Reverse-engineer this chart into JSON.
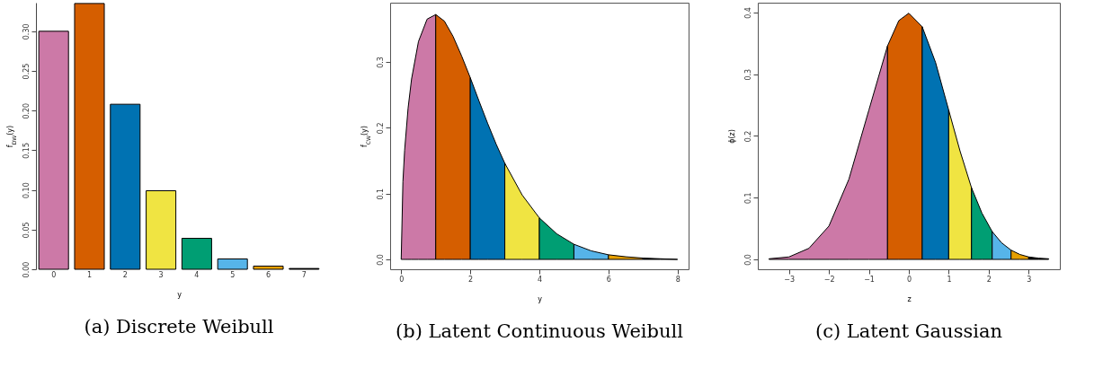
{
  "chart_data": [
    {
      "type": "bar",
      "title": "(a) Discrete Weibull",
      "xlabel": "y",
      "ylabel": "f$_{DW}$(y)",
      "categories": [
        "0",
        "1",
        "2",
        "3",
        "4",
        "5",
        "6",
        "7"
      ],
      "values": [
        0.3,
        0.335,
        0.208,
        0.099,
        0.039,
        0.013,
        0.004,
        0.001
      ],
      "colors": [
        "#cc79a7",
        "#d55e00",
        "#0072b2",
        "#f0e442",
        "#009e73",
        "#56b4e9",
        "#e69f00",
        "#000000"
      ],
      "ylim": [
        0,
        0.336
      ],
      "yticks": [
        {
          "value": 0,
          "label": "0.00"
        },
        {
          "value": 0.05,
          "label": "0.05"
        },
        {
          "value": 0.1,
          "label": "0.10"
        },
        {
          "value": 0.15,
          "label": "0.15"
        },
        {
          "value": 0.2,
          "label": "0.20"
        },
        {
          "value": 0.25,
          "label": "0.25"
        },
        {
          "value": 0.3,
          "label": "0.30"
        }
      ]
    },
    {
      "type": "area",
      "title": "(b) Latent Continuous Weibull",
      "xlabel": "y",
      "ylabel": "f$_{CW}$(y)",
      "xlim": [
        -0.32,
        8.32
      ],
      "xticks": [
        0,
        2,
        4,
        6,
        8
      ],
      "ylim": [
        -0.015,
        0.39
      ],
      "yticks": [
        {
          "value": 0,
          "label": "0.0"
        },
        {
          "value": 0.1,
          "label": "0.1"
        },
        {
          "value": 0.2,
          "label": "0.2"
        },
        {
          "value": 0.3,
          "label": "0.3"
        }
      ],
      "series": [
        {
          "color": "#cc79a7",
          "x": [
            0,
            0.05,
            0.1,
            0.2,
            0.3,
            0.5,
            0.75,
            1
          ],
          "values": [
            0,
            0.118,
            0.166,
            0.23,
            0.274,
            0.331,
            0.365,
            0.372
          ]
        },
        {
          "color": "#d55e00",
          "x": [
            1,
            1.25,
            1.5,
            1.75,
            2
          ],
          "values": [
            0.372,
            0.362,
            0.339,
            0.309,
            0.276
          ]
        },
        {
          "color": "#0072b2",
          "x": [
            2,
            2.25,
            2.5,
            2.75,
            3
          ],
          "values": [
            0.276,
            0.241,
            0.207,
            0.175,
            0.146
          ]
        },
        {
          "color": "#f0e442",
          "x": [
            3,
            3.5,
            4
          ],
          "values": [
            0.146,
            0.098,
            0.063
          ]
        },
        {
          "color": "#009e73",
          "x": [
            4,
            4.5,
            5
          ],
          "values": [
            0.063,
            0.039,
            0.023
          ]
        },
        {
          "color": "#56b4e9",
          "x": [
            5,
            5.5,
            6
          ],
          "values": [
            0.023,
            0.013,
            0.007
          ]
        },
        {
          "color": "#e69f00",
          "x": [
            6,
            6.5,
            7
          ],
          "values": [
            0.007,
            0.004,
            0.002
          ]
        },
        {
          "color": "#000000",
          "x": [
            7,
            7.5,
            8
          ],
          "values": [
            0.002,
            0.001,
            0
          ]
        }
      ]
    },
    {
      "type": "area",
      "title": "(c) Latent Gaussian",
      "xlabel": "z",
      "ylabel": "ϕ(z)",
      "xlim": [
        -3.78,
        3.78
      ],
      "xticks": [
        -3,
        -2,
        -1,
        0,
        1,
        2,
        3
      ],
      "ylim": [
        -0.016,
        0.416
      ],
      "yticks": [
        {
          "value": 0,
          "label": "0.0"
        },
        {
          "value": 0.1,
          "label": "0.1"
        },
        {
          "value": 0.2,
          "label": "0.2"
        },
        {
          "value": 0.3,
          "label": "0.3"
        },
        {
          "value": 0.4,
          "label": "0.4"
        }
      ],
      "series": [
        {
          "color": "#cc79a7",
          "x": [
            -3.5,
            -3,
            -2.5,
            -2,
            -1.5,
            -1,
            -0.533
          ],
          "values": [
            0.001,
            0.004,
            0.018,
            0.054,
            0.13,
            0.242,
            0.346
          ]
        },
        {
          "color": "#d55e00",
          "x": [
            -0.533,
            -0.25,
            0,
            0.335
          ],
          "values": [
            0.346,
            0.387,
            0.399,
            0.377
          ]
        },
        {
          "color": "#0072b2",
          "x": [
            0.335,
            0.67,
            0.998
          ],
          "values": [
            0.377,
            0.319,
            0.242
          ]
        },
        {
          "color": "#f0e442",
          "x": [
            0.998,
            1.28,
            1.569
          ],
          "values": [
            0.242,
            0.176,
            0.116
          ]
        },
        {
          "color": "#009e73",
          "x": [
            1.569,
            1.83,
            2.087
          ],
          "values": [
            0.116,
            0.075,
            0.045
          ]
        },
        {
          "color": "#56b4e9",
          "x": [
            2.087,
            2.32,
            2.559
          ],
          "values": [
            0.045,
            0.027,
            0.015
          ]
        },
        {
          "color": "#e69f00",
          "x": [
            2.559,
            2.78,
            3
          ],
          "values": [
            0.015,
            0.008,
            0.004
          ]
        },
        {
          "color": "#000000",
          "x": [
            3,
            3.25,
            3.5
          ],
          "values": [
            0.004,
            0.002,
            0.001
          ]
        }
      ]
    }
  ]
}
